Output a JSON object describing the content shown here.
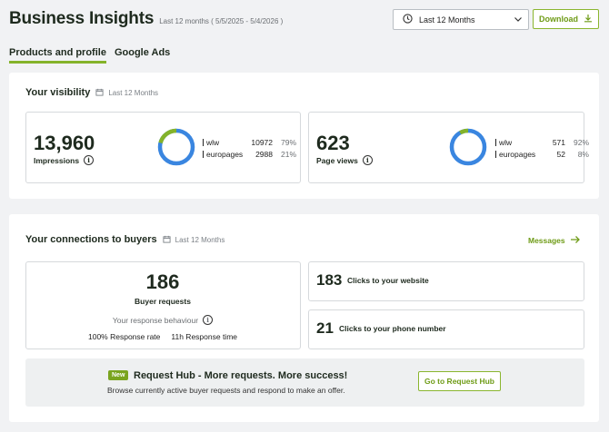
{
  "header": {
    "title": "Business Insights",
    "subtitle": "Last 12 months ( 5/5/2025 - 5/4/2026 )",
    "period_label": "Last 12 Months",
    "download_label": "Download"
  },
  "tabs": [
    {
      "label": "Products and profile",
      "active": true
    },
    {
      "label": "Google Ads",
      "active": false
    }
  ],
  "visibility": {
    "title": "Your visibility",
    "period": "Last 12 Months",
    "impressions": {
      "value": "13,960",
      "label": "Impressions",
      "rows": [
        {
          "name": "wlw",
          "count": "10972",
          "pct": "79%"
        },
        {
          "name": "europages",
          "count": "2988",
          "pct": "21%"
        }
      ]
    },
    "pageviews": {
      "value": "623",
      "label": "Page views",
      "rows": [
        {
          "name": "wlw",
          "count": "571",
          "pct": "92%"
        },
        {
          "name": "europages",
          "count": "52",
          "pct": "8%"
        }
      ]
    }
  },
  "connections": {
    "title": "Your connections to buyers",
    "period": "Last 12 Months",
    "messages_label": "Messages",
    "buyer_requests": {
      "value": "186",
      "label": "Buyer requests",
      "behaviour_label": "Your response behaviour",
      "response_rate": "100% Response rate",
      "response_time": "11h Response time"
    },
    "website_clicks": {
      "value": "183",
      "label": "Clicks to your website"
    },
    "phone_clicks": {
      "value": "21",
      "label": "Clicks to your phone number"
    }
  },
  "request_hub": {
    "badge": "New",
    "title": "Request Hub - More requests. More success!",
    "text": "Browse currently active buyer requests and respond to make an offer.",
    "button": "Go to Request Hub"
  },
  "colors": {
    "accent": "#84b32a",
    "donut_primary": "#3a86e0",
    "donut_secondary": "#84b32a"
  }
}
